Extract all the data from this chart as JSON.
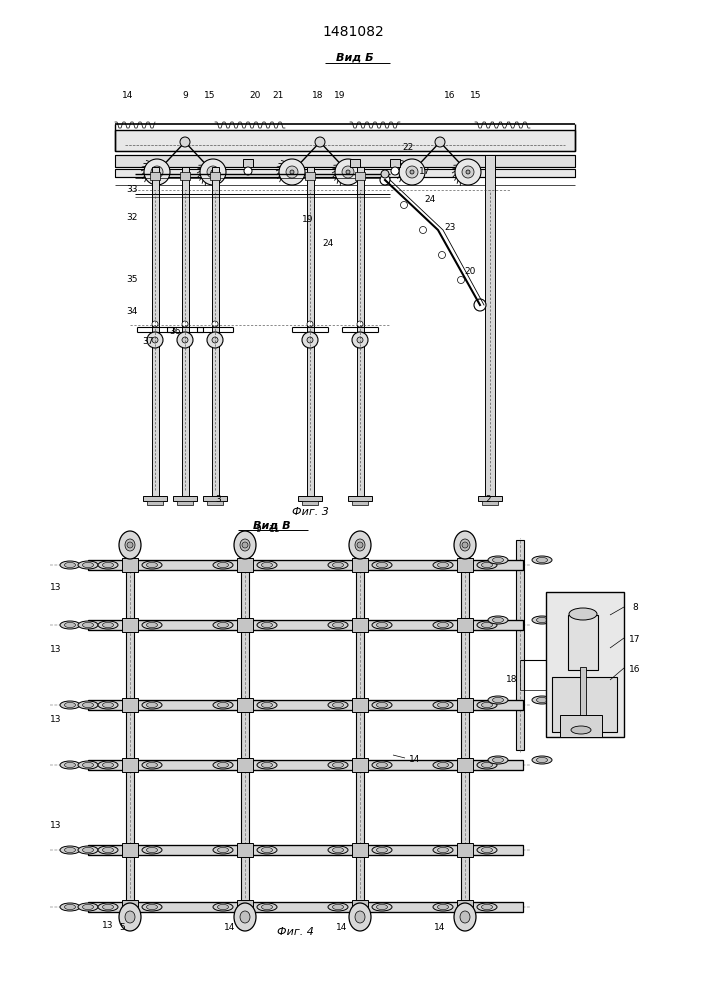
{
  "patent_number": "1481082",
  "background_color": "#ffffff",
  "line_color": "#000000",
  "fig3_label": "Фиг. 3",
  "fig4_label": "Фиг. 4",
  "vid_b_label": "Вид Б",
  "vid_v_label": "Вид В",
  "line_width": 0.8,
  "thin_line": 0.4,
  "thick_line": 1.2
}
